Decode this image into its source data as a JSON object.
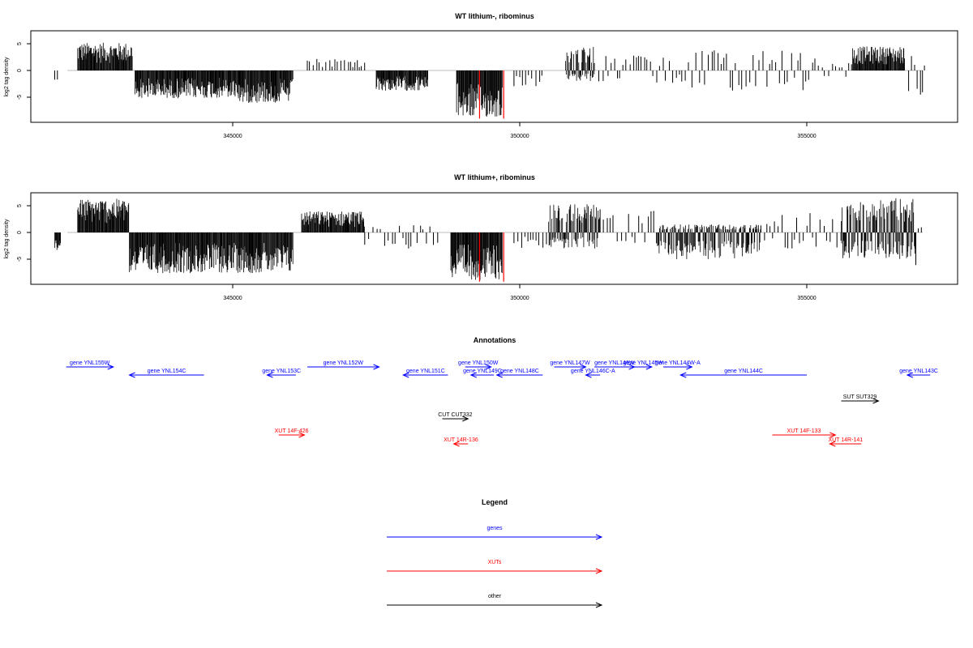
{
  "figure": {
    "panels": [
      {
        "title": "WT lithium-, ribominus",
        "ylabel": "log2 tag density",
        "xticks": [
          "345000",
          "350000",
          "355000"
        ],
        "yticks": [
          "5",
          "0",
          "-5"
        ]
      },
      {
        "title": "WT lithium+, ribominus",
        "ylabel": "log2 tag density",
        "xticks": [
          "345000",
          "350000",
          "355000"
        ],
        "yticks": [
          "5",
          "0",
          "-5"
        ]
      }
    ],
    "annotations_title": "Annotations",
    "legend_title": "Legend"
  },
  "colors": {
    "genes": "#0000ff",
    "XUTs": "#ff0000",
    "other": "#000000",
    "baseline": "#bdbdbd",
    "highlight": "#ff0000"
  },
  "chart_data": [
    {
      "type": "bar",
      "title": "WT lithium-, ribominus",
      "ylabel": "log2 tag density",
      "xlim": [
        341700,
        357500
      ],
      "ylim": [
        -9.5,
        7
      ],
      "xticks": [
        345000,
        350000,
        355000
      ],
      "yticks": [
        -5,
        0,
        5
      ],
      "grid": false,
      "segments": [
        {
          "x": [
            341900,
            341950
          ],
          "min": -2.2,
          "max": 0,
          "density": "sparse"
        },
        {
          "x": [
            342300,
            343250
          ],
          "min": 0,
          "max": 5.2,
          "density": "dense"
        },
        {
          "x": [
            343300,
            345100
          ],
          "min": -5.2,
          "max": 0,
          "density": "dense"
        },
        {
          "x": [
            345100,
            346050
          ],
          "min": -6.1,
          "max": 0,
          "density": "dense"
        },
        {
          "x": [
            346300,
            347300
          ],
          "min": 0,
          "max": 2.3,
          "density": "sparse"
        },
        {
          "x": [
            347500,
            348400
          ],
          "min": -3.8,
          "max": 0,
          "density": "dense"
        },
        {
          "x": [
            348900,
            349700
          ],
          "min": -8.8,
          "max": 0,
          "density": "dense"
        },
        {
          "x": [
            349900,
            350400
          ],
          "min": -3.0,
          "max": 0,
          "density": "sparse"
        },
        {
          "x": [
            350800,
            351300
          ],
          "min": -2.0,
          "max": 4.6,
          "density": "dense"
        },
        {
          "x": [
            351300,
            353000
          ],
          "min": -2.5,
          "max": 2.8,
          "density": "sparse"
        },
        {
          "x": [
            353000,
            355200
          ],
          "min": -3.8,
          "max": 3.9,
          "density": "sparse"
        },
        {
          "x": [
            355200,
            355800
          ],
          "min": -2.0,
          "max": 1.5,
          "density": "sparse"
        },
        {
          "x": [
            355800,
            356700
          ],
          "min": 0,
          "max": 4.5,
          "density": "dense"
        },
        {
          "x": [
            356700,
            357100
          ],
          "min": -5.0,
          "max": 2.8,
          "density": "sparse"
        }
      ],
      "highlight_bars": [
        {
          "x": 349300,
          "y": -9.0
        },
        {
          "x": 349720,
          "y": -9.0
        }
      ]
    },
    {
      "type": "bar",
      "title": "WT lithium+, ribominus",
      "ylabel": "log2 tag density",
      "xlim": [
        341700,
        357500
      ],
      "ylim": [
        -9.5,
        7
      ],
      "xticks": [
        345000,
        350000,
        355000
      ],
      "yticks": [
        -5,
        0,
        5
      ],
      "grid": false,
      "segments": [
        {
          "x": [
            341900,
            342000
          ],
          "min": -3.5,
          "max": 0,
          "density": "dense"
        },
        {
          "x": [
            342300,
            343200
          ],
          "min": 0,
          "max": 6.3,
          "density": "dense"
        },
        {
          "x": [
            343200,
            346050
          ],
          "min": -7.6,
          "max": 0,
          "density": "dense"
        },
        {
          "x": [
            346200,
            347300
          ],
          "min": 0,
          "max": 4.0,
          "density": "dense"
        },
        {
          "x": [
            347300,
            348600
          ],
          "min": -3.0,
          "max": 1.5,
          "density": "sparse"
        },
        {
          "x": [
            348800,
            349700
          ],
          "min": -8.9,
          "max": 0,
          "density": "dense"
        },
        {
          "x": [
            349900,
            350500
          ],
          "min": -3.0,
          "max": 0,
          "density": "sparse"
        },
        {
          "x": [
            350500,
            351400
          ],
          "min": -3.0,
          "max": 5.4,
          "density": "dense"
        },
        {
          "x": [
            351400,
            352400
          ],
          "min": -2.5,
          "max": 4.5,
          "density": "sparse"
        },
        {
          "x": [
            352400,
            354200
          ],
          "min": -5.0,
          "max": 1.5,
          "density": "dense"
        },
        {
          "x": [
            354200,
            355600
          ],
          "min": -3.0,
          "max": 3.8,
          "density": "sparse"
        },
        {
          "x": [
            355600,
            356900
          ],
          "min": -5.0,
          "max": 6.5,
          "density": "dense"
        },
        {
          "x": [
            356900,
            357050
          ],
          "min": -7.0,
          "max": 2.5,
          "density": "sparse"
        }
      ],
      "highlight_bars": [
        {
          "x": 349300,
          "y": -9.2
        },
        {
          "x": 349720,
          "y": -9.2
        }
      ]
    }
  ],
  "annotations": [
    {
      "label": "gene YNL155W",
      "category": "genes",
      "start": 342100,
      "end": 342920,
      "track": 1
    },
    {
      "label": "gene YNL154C",
      "category": "genes",
      "start": 343200,
      "end": 344500,
      "track": 0
    },
    {
      "label": "gene YNL153C",
      "category": "genes",
      "start": 345600,
      "end": 346100,
      "track": 0
    },
    {
      "label": "gene YNL152W",
      "category": "genes",
      "start": 346300,
      "end": 347550,
      "track": 1
    },
    {
      "label": "gene YNL151C",
      "category": "genes",
      "start": 347970,
      "end": 348750,
      "track": 0
    },
    {
      "label": "gene YNL150W",
      "category": "genes",
      "start": 349050,
      "end": 349500,
      "track": 1
    },
    {
      "label": "gene YNL149C",
      "category": "genes",
      "start": 349150,
      "end": 349550,
      "track": 0
    },
    {
      "label": "gene YNL148C",
      "category": "genes",
      "start": 349600,
      "end": 350400,
      "track": 0
    },
    {
      "label": "gene YNL147W",
      "category": "genes",
      "start": 350600,
      "end": 351150,
      "track": 1
    },
    {
      "label": "gene YNL146C-A",
      "category": "genes",
      "start": 351150,
      "end": 351400,
      "track": 0
    },
    {
      "label": "gene YNL146W",
      "category": "genes",
      "start": 351300,
      "end": 352000,
      "track": 1
    },
    {
      "label": "gene YNL145W",
      "category": "genes",
      "start": 352000,
      "end": 352300,
      "track": 1
    },
    {
      "label": "gene YNL144W-A",
      "category": "genes",
      "start": 352500,
      "end": 353000,
      "track": 1
    },
    {
      "label": "gene YNL144C",
      "category": "genes",
      "start": 352800,
      "end": 355000,
      "track": 0
    },
    {
      "label": "gene YNL143C",
      "category": "genes",
      "start": 356750,
      "end": 357150,
      "track": 0
    },
    {
      "label": "SUT SUT329",
      "category": "other",
      "start": 355600,
      "end": 356250,
      "track": 2
    },
    {
      "label": "CUT CUT332",
      "category": "other",
      "start": 348650,
      "end": 349100,
      "track": 3
    },
    {
      "label": "XUT 14F-426",
      "category": "XUTs",
      "start": 345800,
      "end": 346250,
      "track": 4
    },
    {
      "label": "XUT 14R-136",
      "category": "XUTs",
      "start": 348850,
      "end": 349100,
      "track": 5
    },
    {
      "label": "XUT 14F-133",
      "category": "XUTs",
      "start": 354400,
      "end": 355500,
      "track": 4
    },
    {
      "label": "XUT 14R-141",
      "category": "XUTs",
      "start": 355400,
      "end": 355950,
      "track": 5
    }
  ],
  "legend": [
    {
      "label": "genes",
      "category": "genes"
    },
    {
      "label": "XUTs",
      "category": "XUTs"
    },
    {
      "label": "other",
      "category": "other"
    }
  ]
}
